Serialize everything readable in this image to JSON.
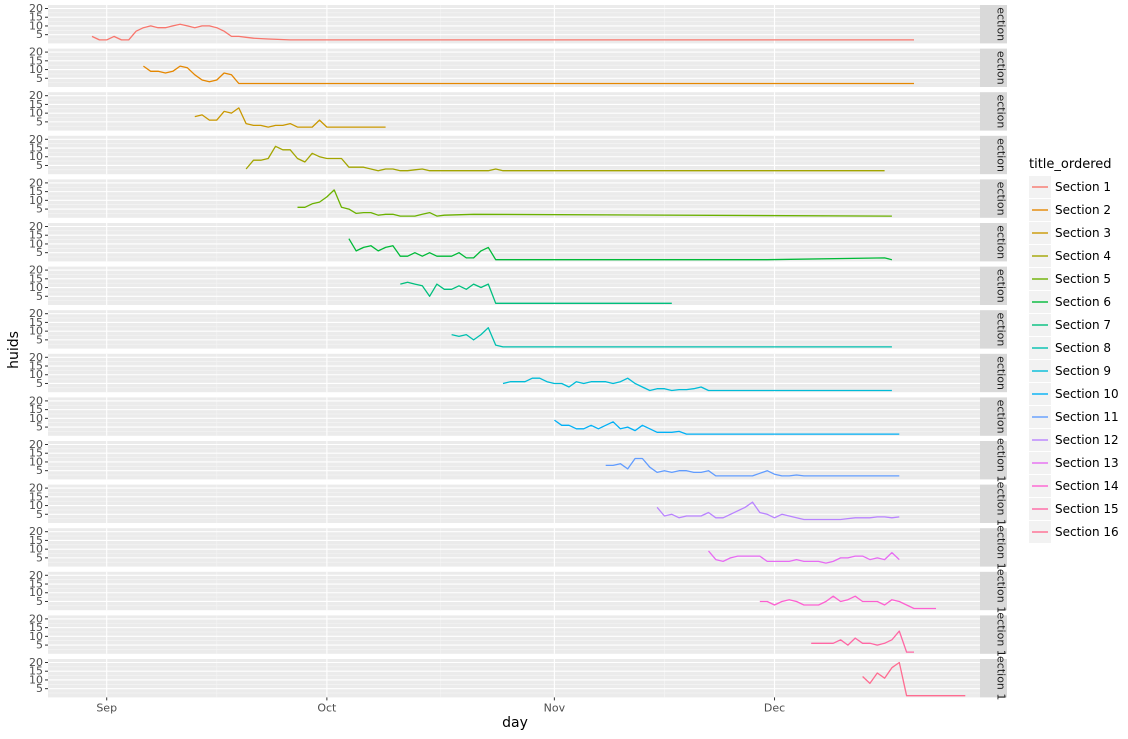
{
  "chart_data": {
    "type": "line",
    "xlabel": "day",
    "ylabel": "huids",
    "x_ticks": [
      "Sep",
      "Oct",
      "Nov",
      "Dec"
    ],
    "x_tick_days": [
      0,
      30,
      61,
      91
    ],
    "xlim": [
      -8,
      119
    ],
    "y_ticks": [
      5,
      10,
      15,
      20
    ],
    "ylim": [
      0,
      22
    ],
    "legend_title": "title_ordered",
    "legend_position": "right",
    "grid": true,
    "colors": [
      "#F8766D",
      "#E58700",
      "#C99800",
      "#A3A500",
      "#6BB100",
      "#00BA38",
      "#00BF7D",
      "#00C0AF",
      "#00BCD8",
      "#00B0F6",
      "#619CFF",
      "#B983FF",
      "#E76BF3",
      "#FD61D1",
      "#FF67A4",
      "#FF6C91"
    ],
    "series": [
      {
        "name": "Section 1",
        "strip": "ection",
        "x": [
          -2,
          -1,
          0,
          1,
          2,
          3,
          4,
          5,
          6,
          7,
          8,
          9,
          10,
          11,
          12,
          13,
          14,
          15,
          16,
          17,
          18,
          19,
          20,
          22,
          25,
          110
        ],
        "y": [
          4,
          2,
          2,
          4,
          2,
          2,
          7,
          9,
          10,
          9,
          9,
          10,
          11,
          10,
          9,
          10,
          10,
          9,
          7,
          4,
          4,
          3.5,
          3,
          2.5,
          2,
          2
        ]
      },
      {
        "name": "Section 2",
        "strip": "ection",
        "x": [
          5,
          6,
          7,
          8,
          9,
          10,
          11,
          12,
          13,
          14,
          15,
          16,
          17,
          18,
          19,
          110
        ],
        "y": [
          12,
          9,
          9,
          8,
          9,
          12,
          11,
          7,
          4,
          3,
          4,
          8,
          7,
          2,
          2,
          2
        ]
      },
      {
        "name": "Section 3",
        "strip": "ection",
        "x": [
          12,
          13,
          14,
          15,
          16,
          17,
          18,
          19,
          20,
          21,
          22,
          23,
          24,
          25,
          26,
          27,
          28,
          29,
          30,
          31,
          32,
          33,
          36,
          37,
          38
        ],
        "y": [
          8,
          9,
          6,
          6,
          11,
          10,
          13,
          4,
          3,
          3,
          2,
          3,
          3,
          4,
          2,
          2,
          2,
          6,
          2,
          2,
          2,
          2,
          2,
          2,
          2
        ]
      },
      {
        "name": "Section 4",
        "strip": "ection",
        "x": [
          19,
          20,
          21,
          22,
          23,
          24,
          25,
          26,
          27,
          28,
          29,
          30,
          31,
          32,
          33,
          34,
          35,
          36,
          37,
          38,
          39,
          40,
          41,
          42,
          43,
          44,
          45,
          46,
          48,
          50,
          52,
          53,
          54,
          106
        ],
        "y": [
          3,
          8,
          8,
          9,
          16,
          14,
          14,
          9,
          7,
          12,
          10,
          9,
          9,
          9,
          4,
          4,
          4,
          3,
          2,
          3,
          3,
          2,
          2,
          2.5,
          3,
          2,
          2,
          2,
          2,
          2,
          2,
          3,
          2,
          2
        ]
      },
      {
        "name": "Section 5",
        "strip": "ection",
        "x": [
          26,
          27,
          28,
          29,
          30,
          31,
          32,
          33,
          34,
          35,
          36,
          37,
          38,
          39,
          40,
          41,
          42,
          43,
          44,
          45,
          46,
          50,
          107
        ],
        "y": [
          6,
          6,
          8,
          9,
          12,
          16,
          6,
          5,
          2.5,
          3,
          3,
          1.5,
          2,
          2,
          1,
          1,
          1,
          2,
          3,
          1,
          1.5,
          2,
          1
        ]
      },
      {
        "name": "Section 6",
        "strip": "ection",
        "x": [
          33,
          34,
          35,
          36,
          37,
          38,
          39,
          40,
          41,
          42,
          43,
          44,
          45,
          46,
          47,
          48,
          49,
          50,
          51,
          52,
          53,
          54,
          55,
          56,
          90,
          106,
          107
        ],
        "y": [
          13,
          6,
          8,
          9,
          6,
          8,
          9,
          3,
          3,
          5,
          3,
          5,
          3,
          3,
          3,
          5,
          2,
          2,
          6,
          8,
          1,
          1,
          1,
          1,
          1,
          2,
          1
        ]
      },
      {
        "name": "Section 7",
        "strip": "ection",
        "x": [
          40,
          41,
          42,
          43,
          44,
          45,
          46,
          47,
          48,
          49,
          50,
          51,
          52,
          53,
          54,
          55,
          62,
          63,
          70,
          77
        ],
        "y": [
          12,
          13,
          12,
          11,
          5,
          12,
          9,
          9,
          11,
          9,
          12,
          10,
          12,
          1,
          1,
          1,
          1,
          1,
          1,
          1
        ]
      },
      {
        "name": "Section 8",
        "strip": "ection",
        "x": [
          47,
          48,
          49,
          50,
          51,
          52,
          53,
          54,
          55,
          56,
          107
        ],
        "y": [
          8,
          7,
          8,
          5,
          8,
          12,
          2,
          1,
          1,
          1,
          1
        ]
      },
      {
        "name": "Section 9",
        "strip": "ection",
        "x": [
          54,
          55,
          56,
          57,
          58,
          59,
          60,
          61,
          62,
          63,
          64,
          65,
          66,
          67,
          68,
          69,
          70,
          71,
          72,
          73,
          74,
          75,
          76,
          77,
          78,
          79,
          80,
          81,
          82,
          83,
          107
        ],
        "y": [
          5,
          6,
          6,
          6,
          8,
          8,
          6,
          5,
          5,
          3,
          6,
          5,
          6,
          6,
          6,
          5,
          6,
          8,
          5,
          3,
          1,
          2,
          2,
          1,
          1.5,
          1.5,
          2,
          3,
          1,
          1,
          1
        ]
      },
      {
        "name": "Section 10",
        "strip": "ection",
        "x": [
          61,
          62,
          63,
          64,
          65,
          66,
          67,
          68,
          69,
          70,
          71,
          72,
          73,
          74,
          75,
          76,
          77,
          78,
          79,
          80,
          81,
          108
        ],
        "y": [
          9,
          6,
          6,
          4,
          4,
          6,
          4,
          6,
          8,
          4,
          5,
          3,
          6,
          4,
          2,
          2,
          2,
          2.5,
          1,
          1,
          1,
          1
        ]
      },
      {
        "name": "Section 11",
        "strip": "ection 1",
        "x": [
          68,
          69,
          70,
          71,
          72,
          73,
          74,
          75,
          76,
          77,
          78,
          79,
          80,
          81,
          82,
          83,
          84,
          85,
          86,
          87,
          88,
          89,
          90,
          91,
          92,
          93,
          94,
          95,
          96,
          108
        ],
        "y": [
          8,
          8,
          9,
          6,
          12,
          12,
          7,
          4,
          5,
          4,
          5,
          5,
          4,
          4,
          5,
          2,
          2,
          2,
          2,
          2,
          2,
          3.5,
          5,
          3,
          2,
          2,
          2.5,
          2,
          2,
          2
        ]
      },
      {
        "name": "Section 12",
        "strip": "ection 1",
        "x": [
          75,
          76,
          77,
          78,
          79,
          80,
          81,
          82,
          83,
          84,
          85,
          86,
          87,
          88,
          89,
          90,
          91,
          92,
          93,
          94,
          95,
          96,
          97,
          98,
          99,
          100,
          101,
          102,
          103,
          104,
          105,
          106,
          107,
          108
        ],
        "y": [
          9,
          4,
          5,
          3,
          4,
          4,
          4,
          6,
          3,
          3,
          5,
          7,
          9,
          12,
          6,
          5,
          3,
          5,
          4,
          3,
          2,
          2,
          2,
          2,
          2,
          2,
          2.5,
          3,
          3,
          3,
          3.5,
          3.5,
          3,
          3.5
        ]
      },
      {
        "name": "Section 13",
        "strip": "ection 1",
        "x": [
          82,
          83,
          84,
          85,
          86,
          87,
          88,
          89,
          90,
          91,
          92,
          93,
          94,
          95,
          96,
          97,
          98,
          99,
          100,
          101,
          102,
          103,
          104,
          105,
          106,
          107,
          108
        ],
        "y": [
          9,
          4,
          3,
          5,
          6,
          6,
          6,
          6,
          3,
          3,
          3,
          3,
          4,
          3,
          3,
          3,
          2,
          3,
          5,
          5,
          6,
          6,
          4,
          5,
          4,
          8,
          4
        ]
      },
      {
        "name": "Section 14",
        "strip": "ection 1",
        "x": [
          89,
          90,
          91,
          92,
          93,
          94,
          95,
          96,
          97,
          98,
          99,
          100,
          101,
          102,
          103,
          104,
          105,
          106,
          107,
          108,
          109,
          110,
          111,
          112,
          113
        ],
        "y": [
          5,
          5,
          3,
          5,
          6,
          5,
          3,
          3,
          3,
          5,
          8,
          5,
          6,
          8,
          5,
          5,
          5,
          3,
          6,
          5,
          3,
          1,
          1,
          1,
          1
        ]
      },
      {
        "name": "Section 15",
        "strip": "ection 1",
        "x": [
          96,
          97,
          98,
          99,
          100,
          101,
          102,
          103,
          104,
          105,
          106,
          107,
          108,
          109,
          110
        ],
        "y": [
          6,
          6,
          6,
          6,
          8,
          5,
          9,
          6,
          6,
          5,
          6,
          8,
          13,
          1,
          1
        ]
      },
      {
        "name": "Section 16",
        "strip": "ection 1",
        "x": [
          103,
          104,
          105,
          106,
          107,
          108,
          109,
          110,
          111,
          112,
          113,
          114,
          115,
          116,
          117
        ],
        "y": [
          12,
          8,
          14,
          11,
          17,
          20,
          1,
          1,
          1,
          1,
          1,
          1,
          1,
          1,
          1
        ]
      }
    ]
  }
}
